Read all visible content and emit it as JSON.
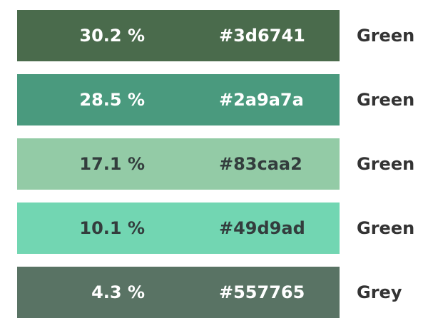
{
  "palette": {
    "rows": [
      {
        "percent": "30.2 %",
        "hex": "#3d6741",
        "name": "Green",
        "color": "#4a6b4c",
        "text_color": "#ffffff"
      },
      {
        "percent": "28.5 %",
        "hex": "#2a9a7a",
        "name": "Green",
        "color": "#4a9a7e",
        "text_color": "#ffffff"
      },
      {
        "percent": "17.1 %",
        "hex": "#83caa2",
        "name": "Green",
        "color": "#93cba6",
        "text_color": "#333d3d"
      },
      {
        "percent": "10.1 %",
        "hex": "#49d9ad",
        "name": "Green",
        "color": "#72d6b2",
        "text_color": "#333d3d"
      },
      {
        "percent": "4.3 %",
        "hex": "#557765",
        "name": "Grey",
        "color": "#597364",
        "text_color": "#ffffff"
      }
    ]
  }
}
